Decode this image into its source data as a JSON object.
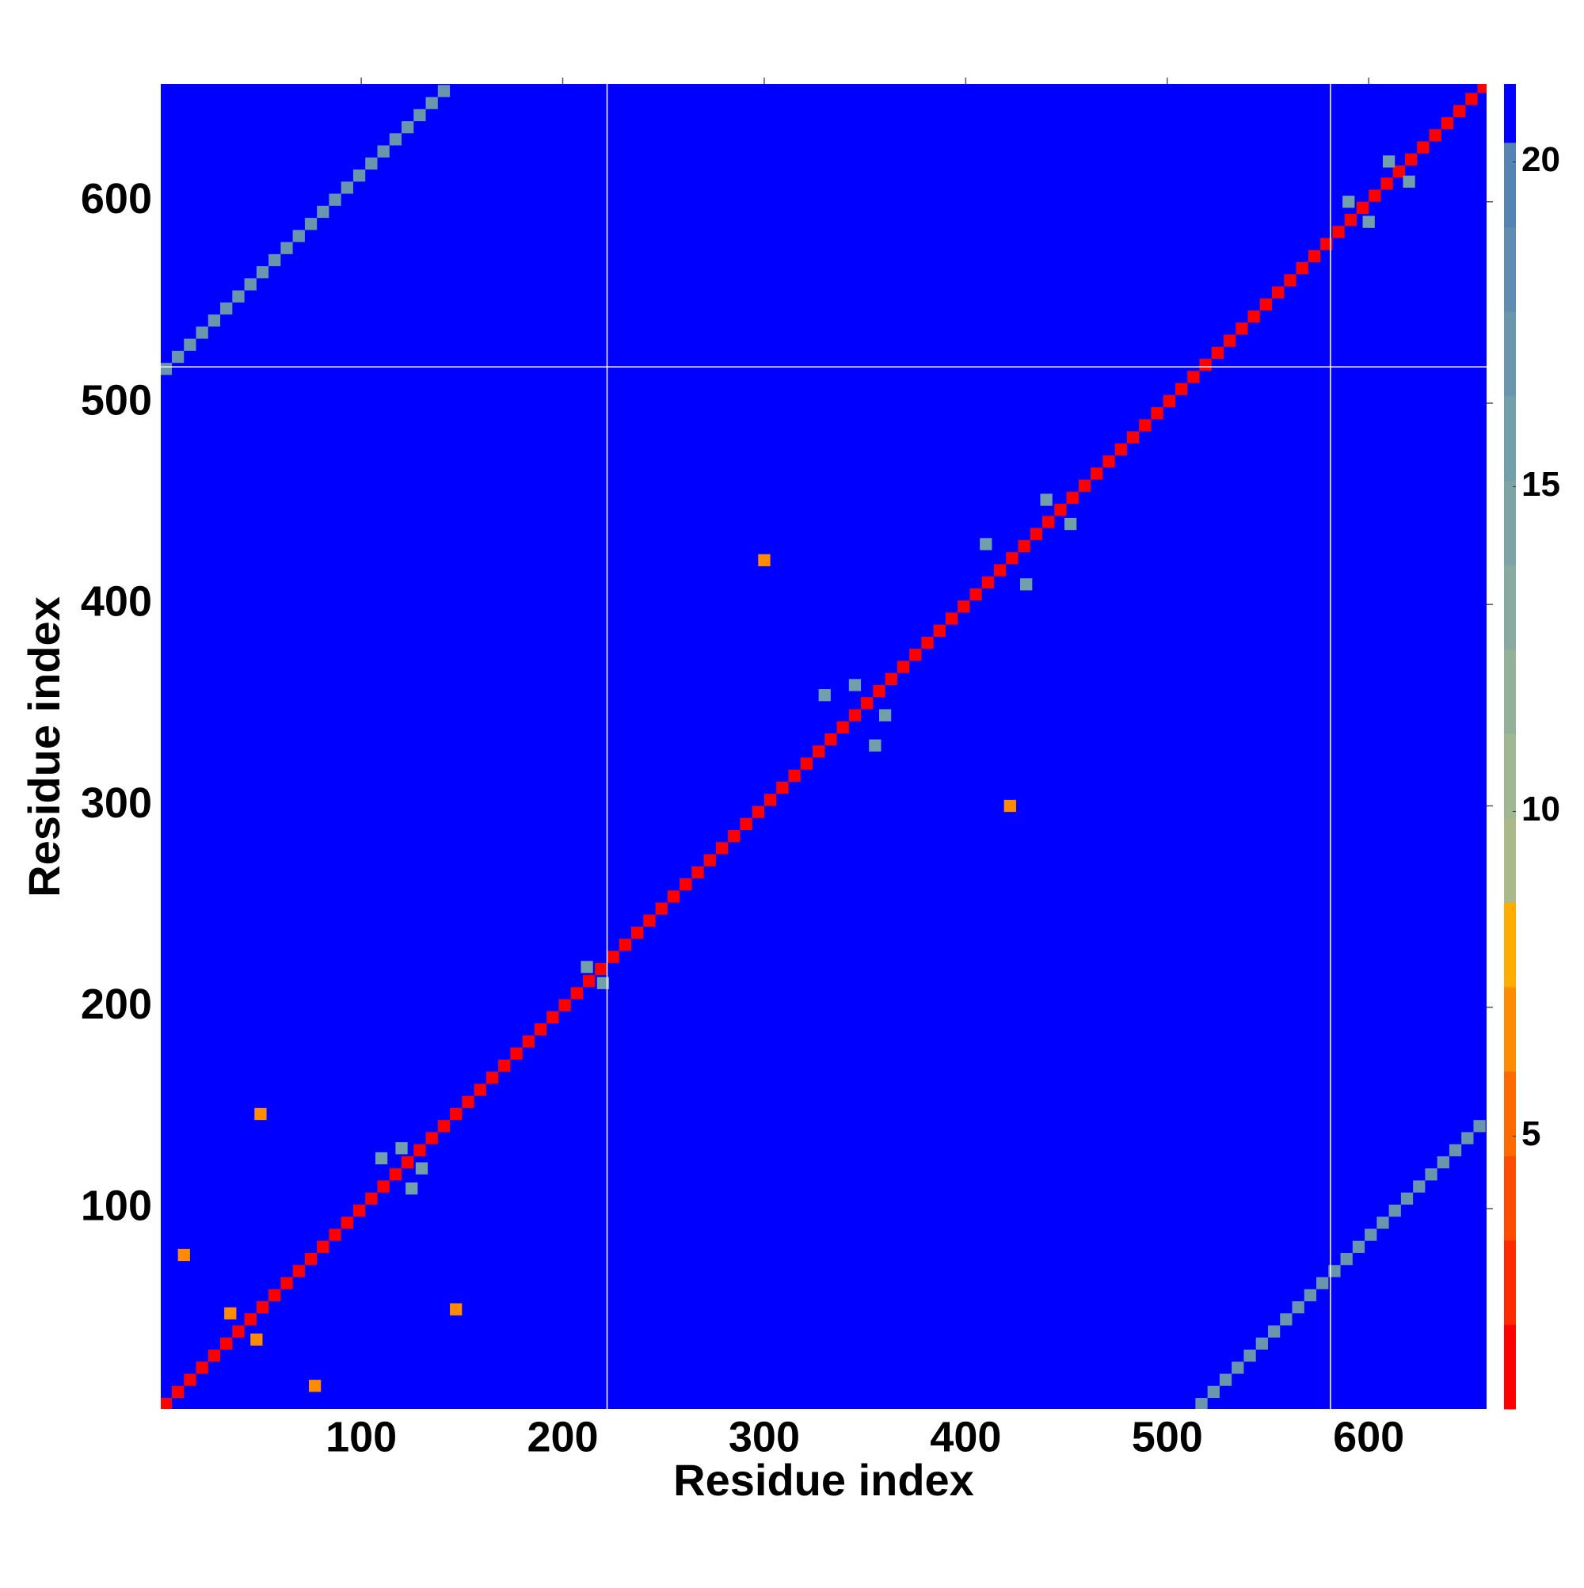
{
  "chart_data": {
    "type": "heatmap",
    "xlabel": "Residue index",
    "ylabel": "Residue index",
    "xlim": [
      0.5,
      658.5
    ],
    "ylim": [
      0.5,
      658.5
    ],
    "xticks": [
      100,
      200,
      300,
      400,
      500,
      600
    ],
    "yticks": [
      100,
      200,
      300,
      400,
      500,
      600
    ],
    "separators_x": [
      222,
      581
    ],
    "separators_y": [
      518
    ],
    "colorbar": {
      "lim": [
        0.8,
        21.2
      ],
      "ticks": [
        5,
        10,
        15,
        20
      ],
      "levels": [
        0.8,
        2.1,
        3.4,
        4.7,
        6.0,
        7.3,
        8.6,
        9.9,
        11.2,
        12.5,
        13.8,
        15.1,
        16.4,
        17.7,
        19.0,
        20.3,
        21.2
      ],
      "colors": [
        "#ff0000",
        "#ff2a00",
        "#ff4d00",
        "#ff6a00",
        "#ff8c00",
        "#ffae00",
        "#a9b98a",
        "#9fb892",
        "#93b199",
        "#88aaa0",
        "#7ea3a6",
        "#72a0aa",
        "#6996ad",
        "#5f8cb0",
        "#5484b3",
        "#0000ff"
      ]
    },
    "x": [
      3,
      9,
      15,
      21,
      27,
      33,
      39,
      45,
      51,
      57,
      63,
      69,
      75,
      81,
      87,
      93,
      99,
      105,
      111,
      117,
      123,
      129,
      135,
      141,
      147,
      153,
      159,
      165,
      171,
      177,
      183,
      189,
      195,
      201,
      207,
      213,
      219,
      225,
      231,
      237,
      243,
      249,
      255,
      261,
      267,
      273,
      279,
      285,
      291,
      297,
      303,
      309,
      315,
      321,
      327,
      333,
      339,
      345,
      351,
      357,
      363,
      369,
      375,
      381,
      387,
      393,
      399,
      405,
      411,
      417,
      423,
      429,
      435,
      441,
      447,
      453,
      459,
      465,
      471,
      477,
      483,
      489,
      495,
      501,
      507,
      513,
      519,
      525,
      531,
      537,
      543,
      549,
      555,
      561,
      567,
      573,
      579,
      585,
      591,
      597,
      603,
      609,
      615,
      621,
      627,
      633,
      639,
      645,
      651,
      657,
      3,
      9,
      15,
      21,
      27,
      33,
      39,
      45,
      51,
      57,
      63,
      69,
      75,
      81,
      87,
      93,
      99,
      105,
      111,
      117,
      123,
      129,
      135,
      141,
      517,
      523,
      529,
      535,
      541,
      547,
      553,
      559,
      565,
      571,
      577,
      583,
      589,
      595,
      601,
      607,
      613,
      619,
      625,
      631,
      637,
      643,
      649,
      655,
      440,
      452,
      430,
      410,
      360,
      345,
      355,
      330,
      120,
      130,
      110,
      125,
      600,
      590,
      620,
      610,
      220,
      212,
      300,
      422,
      147,
      50,
      12,
      77,
      35,
      48
    ],
    "y": [
      3,
      9,
      15,
      21,
      27,
      33,
      39,
      45,
      51,
      57,
      63,
      69,
      75,
      81,
      87,
      93,
      99,
      105,
      111,
      117,
      123,
      129,
      135,
      141,
      147,
      153,
      159,
      165,
      171,
      177,
      183,
      189,
      195,
      201,
      207,
      213,
      219,
      225,
      231,
      237,
      243,
      249,
      255,
      261,
      267,
      273,
      279,
      285,
      291,
      297,
      303,
      309,
      315,
      321,
      327,
      333,
      339,
      345,
      351,
      357,
      363,
      369,
      375,
      381,
      387,
      393,
      399,
      405,
      411,
      417,
      423,
      429,
      435,
      441,
      447,
      453,
      459,
      465,
      471,
      477,
      483,
      489,
      495,
      501,
      507,
      513,
      519,
      525,
      531,
      537,
      543,
      549,
      555,
      561,
      567,
      573,
      579,
      585,
      591,
      597,
      603,
      609,
      615,
      621,
      627,
      633,
      639,
      645,
      651,
      657,
      517,
      523,
      529,
      535,
      541,
      547,
      553,
      559,
      565,
      571,
      577,
      583,
      589,
      595,
      601,
      607,
      613,
      619,
      625,
      631,
      637,
      643,
      649,
      655,
      3,
      9,
      15,
      21,
      27,
      33,
      39,
      45,
      51,
      57,
      63,
      69,
      75,
      81,
      87,
      93,
      99,
      105,
      111,
      117,
      123,
      129,
      135,
      141,
      452,
      440,
      410,
      430,
      345,
      360,
      330,
      355,
      130,
      120,
      125,
      110,
      590,
      600,
      610,
      620,
      212,
      220,
      422,
      300,
      50,
      147,
      77,
      12,
      48,
      35
    ],
    "values": [
      2,
      2,
      2,
      2,
      2,
      2,
      2,
      2,
      2,
      2,
      2,
      2,
      2,
      2,
      2,
      2,
      2,
      2,
      2,
      2,
      2,
      2,
      2,
      2,
      2,
      2,
      2,
      2,
      2,
      2,
      2,
      2,
      2,
      2,
      2,
      2,
      2,
      2,
      2,
      2,
      2,
      2,
      2,
      2,
      2,
      2,
      2,
      2,
      2,
      2,
      2,
      2,
      2,
      2,
      2,
      2,
      2,
      2,
      2,
      2,
      2,
      2,
      2,
      2,
      2,
      2,
      2,
      2,
      2,
      2,
      2,
      2,
      2,
      2,
      2,
      2,
      2,
      2,
      2,
      2,
      2,
      2,
      2,
      2,
      2,
      2,
      2,
      2,
      2,
      2,
      2,
      2,
      2,
      2,
      2,
      2,
      2,
      2,
      2,
      2,
      2,
      2,
      2,
      2,
      2,
      2,
      2,
      2,
      2,
      2,
      17,
      17,
      17,
      17,
      17,
      17,
      17,
      17,
      17,
      17,
      17,
      17,
      17,
      17,
      17,
      17,
      17,
      17,
      17,
      17,
      17,
      17,
      17,
      17,
      17,
      17,
      17,
      17,
      17,
      17,
      17,
      17,
      17,
      17,
      17,
      17,
      17,
      17,
      17,
      17,
      17,
      17,
      17,
      17,
      17,
      17,
      17,
      17,
      16,
      16,
      16,
      16,
      16,
      16,
      16,
      16,
      16,
      16,
      16,
      16,
      16,
      16,
      16,
      16,
      16,
      16,
      6,
      6,
      6,
      6,
      6,
      6,
      6,
      6
    ]
  }
}
